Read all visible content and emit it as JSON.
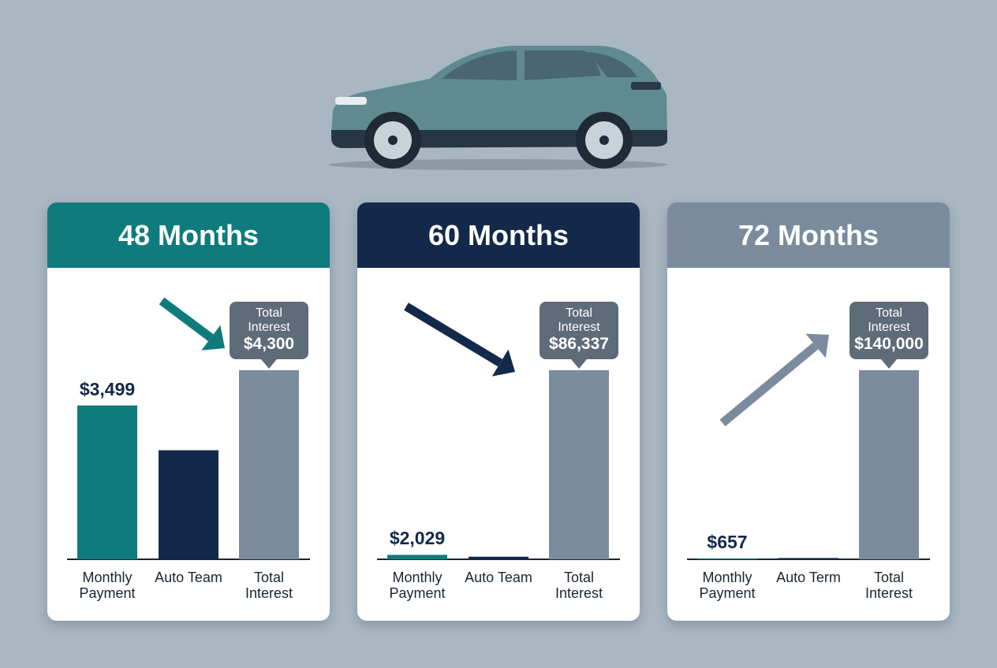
{
  "chart_data": [
    {
      "type": "bar",
      "title": "48 Months",
      "categories": [
        "Monthly Payment",
        "Auto Team",
        "Total Interest"
      ],
      "values": [
        3499,
        2480,
        4300
      ],
      "value_labels": [
        "$3,499",
        null,
        "$4,300"
      ],
      "annotation": "Total Interest",
      "header_color": "#0f7b7c",
      "colors": [
        "#0f7b7c",
        "#13294b",
        "#7b8b9e"
      ]
    },
    {
      "type": "bar",
      "title": "60 Months",
      "categories": [
        "Monthly Payment",
        "Auto Team",
        "Total Interest"
      ],
      "values": [
        2029,
        1170,
        86337
      ],
      "value_labels": [
        "$2,029",
        null,
        "$86,337"
      ],
      "annotation": "Total Interest",
      "header_color": "#13294b",
      "colors": [
        "#0f7b7c",
        "#13294b",
        "#7b8b9e"
      ]
    },
    {
      "type": "bar",
      "title": "72 Months",
      "categories": [
        "Monthly Payment",
        "Auto Term",
        "Total Interest"
      ],
      "values": [
        657,
        961,
        140000
      ],
      "value_labels": [
        "$657",
        null,
        "$140,000"
      ],
      "annotation": "Total Interest",
      "header_color": "#7b8b9e",
      "colors": [
        "#0f7b7c",
        "#13294b",
        "#7b8b9e"
      ]
    }
  ]
}
